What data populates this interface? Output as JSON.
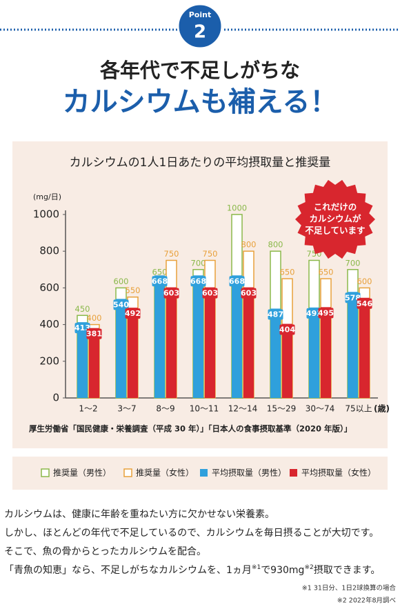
{
  "header": {
    "badge_label": "Point",
    "badge_number": "2",
    "headline": [
      "各年代で不足しがちな",
      "カルシウムも補える！"
    ]
  },
  "chart_data": {
    "type": "bar",
    "title": "カルシウムの1人1日あたりの平均摂取量と推奨量",
    "y_label": "(mg/日)",
    "x_unit": "(歳)",
    "categories": [
      "1〜2",
      "3〜7",
      "8〜9",
      "10〜11",
      "12〜14",
      "15〜29",
      "30〜74",
      "75以上"
    ],
    "series": [
      {
        "name": "推奨量（男性）",
        "color": "#8ab84a",
        "style": "outline",
        "slot": "left",
        "values": [
          450,
          600,
          650,
          700,
          1000,
          800,
          750,
          700
        ]
      },
      {
        "name": "推奨量（女性）",
        "color": "#e8a03a",
        "style": "outline",
        "slot": "right",
        "values": [
          400,
          550,
          750,
          750,
          800,
          650,
          650,
          600
        ]
      },
      {
        "name": "平均摂取量（男性）",
        "color": "#2fa0dc",
        "style": "filled",
        "slot": "left",
        "values": [
          413,
          540,
          668,
          668,
          668,
          487,
          493,
          578
        ]
      },
      {
        "name": "平均摂取量（女性）",
        "color": "#d8262e",
        "style": "filled",
        "slot": "right",
        "values": [
          381,
          492,
          603,
          603,
          603,
          404,
          495,
          546
        ]
      }
    ],
    "ylim": [
      0,
      1000
    ],
    "yticks": [
      0,
      200,
      400,
      600,
      800,
      1000
    ],
    "grid": false,
    "callout": [
      "これだけの",
      "カルシウムが",
      "不足しています"
    ],
    "source": "厚生労働省「国民健康・栄養調査（平成 30 年）」「日本人の食事摂取基準（2020 年版）」"
  },
  "body": {
    "lines": [
      [
        "カルシウムは、健康に年齢を重ねたい方に欠かせない栄養素。"
      ],
      [
        "しかし、ほとんどの年代で不足しているので、カルシウムを毎日摂ることが大切です。"
      ],
      [
        "そこで、魚の骨からとったカルシウムを配合。"
      ],
      [
        "「青魚の知恵」なら、不足しがちなカルシウムを、1ヵ月",
        {
          "sup": "※1"
        },
        "で930mg",
        {
          "sup": "※2"
        },
        "摂取できます。"
      ]
    ],
    "footnotes": [
      "※1  31日分、1日2球換算の場合",
      "※2  2022年8月調べ"
    ]
  }
}
